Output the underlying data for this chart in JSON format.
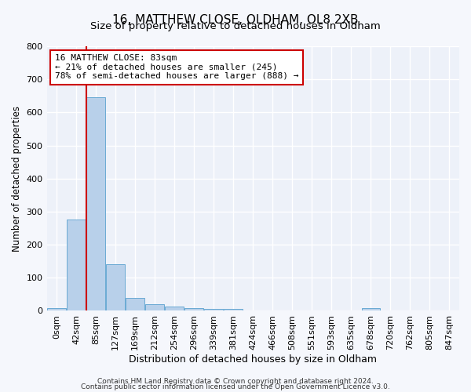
{
  "title": "16, MATTHEW CLOSE, OLDHAM, OL8 2XB",
  "subtitle": "Size of property relative to detached houses in Oldham",
  "xlabel": "Distribution of detached houses by size in Oldham",
  "ylabel": "Number of detached properties",
  "bar_color": "#b8d0ea",
  "bar_edge_color": "#6aaad4",
  "background_color": "#edf1f9",
  "grid_color": "#ffffff",
  "fig_bg_color": "#f5f7fc",
  "ylim": [
    0,
    800
  ],
  "yticks": [
    0,
    100,
    200,
    300,
    400,
    500,
    600,
    700,
    800
  ],
  "bin_labels": [
    "0sqm",
    "42sqm",
    "85sqm",
    "127sqm",
    "169sqm",
    "212sqm",
    "254sqm",
    "296sqm",
    "339sqm",
    "381sqm",
    "424sqm",
    "466sqm",
    "508sqm",
    "551sqm",
    "593sqm",
    "635sqm",
    "678sqm",
    "720sqm",
    "762sqm",
    "805sqm",
    "847sqm"
  ],
  "bar_heights": [
    8,
    275,
    645,
    140,
    38,
    20,
    12,
    8,
    5,
    5,
    0,
    0,
    0,
    0,
    0,
    0,
    8,
    0,
    0,
    0,
    0
  ],
  "annotation_title": "16 MATTHEW CLOSE: 83sqm",
  "annotation_line1": "← 21% of detached houses are smaller (245)",
  "annotation_line2": "78% of semi-detached houses are larger (888) →",
  "annotation_box_color": "#ffffff",
  "annotation_border_color": "#cc0000",
  "vline_color": "#cc0000",
  "footer_line1": "Contains HM Land Registry data © Crown copyright and database right 2024.",
  "footer_line2": "Contains public sector information licensed under the Open Government Licence v3.0."
}
